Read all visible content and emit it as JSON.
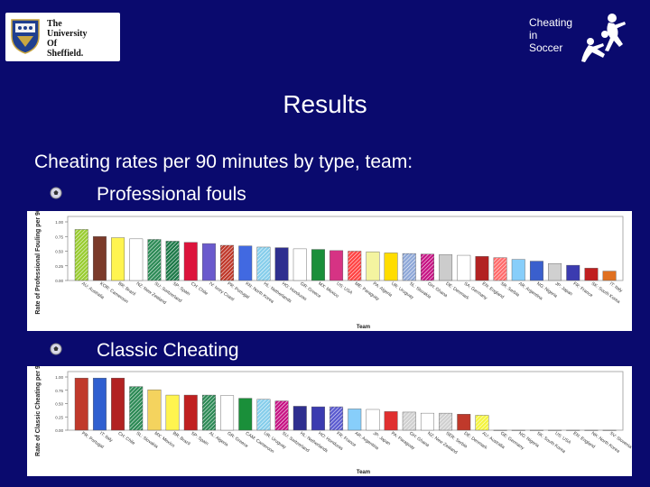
{
  "logo": {
    "line1": "The",
    "line2": "University",
    "line3": "Of",
    "line4": "Sheffield."
  },
  "brand": {
    "line1": "Cheating",
    "line2": "in",
    "line3": "Soccer"
  },
  "slide": {
    "title": "Results",
    "subtitle": "Cheating rates per 90 minutes by type, team:",
    "bullet1": "Professional fouls",
    "bullet2": "Classic Cheating"
  },
  "colors": {
    "background": "#0a0a6e",
    "text": "#ffffff"
  },
  "chart_data": [
    {
      "type": "bar",
      "ylabel": "Rate of Professional Fouling per 90 minutes",
      "xlabel": "Team",
      "ylim": [
        0,
        1.0
      ],
      "categories": [
        "AU: Australia",
        "KOR: Cameroon",
        "BR: Brazil",
        "NZ: New Zealand",
        "SU: Switzerland",
        "SP: Spain",
        "CH: Chile",
        "IV: Ivory Coast",
        "PR: Portugal",
        "KN: North Korea",
        "HL: Netherlands",
        "HO: Honduras",
        "GR: Greece",
        "MX: Mexico",
        "US: USA",
        "ME: Paraguay",
        "PA: Algeria",
        "UR: Uruguay",
        "SL: Slovakia",
        "GH: Ghana",
        "DE: Denmark",
        "SA: Germany",
        "EN: England",
        "SR: Serbia",
        "AR: Argentina",
        "NG: Nigeria",
        "JP: Japan",
        "FR: France",
        "SK: South Korea",
        "IT: Italy"
      ],
      "values": [
        0.87,
        0.75,
        0.73,
        0.71,
        0.7,
        0.67,
        0.65,
        0.63,
        0.6,
        0.59,
        0.57,
        0.56,
        0.54,
        0.53,
        0.51,
        0.5,
        0.49,
        0.47,
        0.46,
        0.45,
        0.44,
        0.43,
        0.41,
        0.39,
        0.36,
        0.33,
        0.29,
        0.26,
        0.21,
        0.16
      ],
      "colors": [
        "#9acd32",
        "#7b3a2a",
        "#fff44f",
        "#ffffff",
        "#2e8b57",
        "#1e7a4a",
        "#dc143c",
        "#6a5acd",
        "#c0392b",
        "#4169e1",
        "#87ceeb",
        "#2f2f8f",
        "#ffffff",
        "#1a8f3a",
        "#d63384",
        "#ff4444",
        "#f4f4a0",
        "#ffdd00",
        "#8fa8d8",
        "#c71585",
        "#cccccc",
        "#ffffff",
        "#b22222",
        "#ff6b6b",
        "#87cefa",
        "#3a5fcd",
        "#d0d0d0",
        "#3b3bb0",
        "#c02020",
        "#e07020"
      ],
      "hatched": [
        true,
        false,
        false,
        false,
        true,
        true,
        false,
        false,
        true,
        false,
        true,
        false,
        false,
        false,
        false,
        true,
        false,
        false,
        true,
        true,
        false,
        false,
        false,
        true,
        false,
        false,
        false,
        false,
        false,
        false
      ]
    },
    {
      "type": "bar",
      "ylabel": "Rate of Classic Cheating per 90 mins",
      "xlabel": "Team",
      "ylim": [
        0,
        1.0
      ],
      "categories": [
        "PR: Portugal",
        "IT: Italy",
        "CH: Chile",
        "SL: Slovakia",
        "MX: Mexico",
        "BR: Brazil",
        "SP: Spain",
        "AL: Algeria",
        "GR: Greece",
        "CAM: Cameroon",
        "UR: Uruguay",
        "SU: Switzerland",
        "HL: Netherlands",
        "HO: Honduras",
        "FR: France",
        "AR: Argentina",
        "JP: Japan",
        "PA: Paraguay",
        "GH: Ghana",
        "NZ: New Zealand",
        "SER: Serbia",
        "DE: Denmark",
        "AU: Australia",
        "GE: Germany",
        "NG: Nigeria",
        "SK: South Korea",
        "US: USA",
        "EN: England",
        "NK: North Korea",
        "SV: Slovenia"
      ],
      "values": [
        0.98,
        0.98,
        0.98,
        0.82,
        0.76,
        0.66,
        0.66,
        0.66,
        0.65,
        0.6,
        0.58,
        0.55,
        0.45,
        0.44,
        0.44,
        0.4,
        0.39,
        0.35,
        0.34,
        0.32,
        0.32,
        0.3,
        0.28,
        0.0,
        0.0,
        0.0,
        0.0,
        0.0,
        0.0,
        0.0
      ],
      "colors": [
        "#c0392b",
        "#2f5fd0",
        "#b22222",
        "#2e8b57",
        "#f4d35e",
        "#fff44f",
        "#c02020",
        "#2e8b57",
        "#ffffff",
        "#1a8f3a",
        "#87ceeb",
        "#c71585",
        "#2f2f8f",
        "#3b3bb0",
        "#5b5bd0",
        "#87cefa",
        "#ffffff",
        "#e03030",
        "#d0d0d0",
        "#ffffff",
        "#d0d0d0",
        "#c0392b",
        "#f4f440",
        "#ffffff",
        "#ffffff",
        "#ffffff",
        "#ffffff",
        "#ffffff",
        "#ffffff",
        "#ffffff"
      ],
      "hatched": [
        false,
        false,
        false,
        true,
        false,
        false,
        false,
        true,
        false,
        false,
        true,
        true,
        false,
        false,
        true,
        false,
        false,
        false,
        true,
        false,
        true,
        false,
        true,
        false,
        false,
        false,
        false,
        false,
        false,
        false
      ]
    }
  ]
}
